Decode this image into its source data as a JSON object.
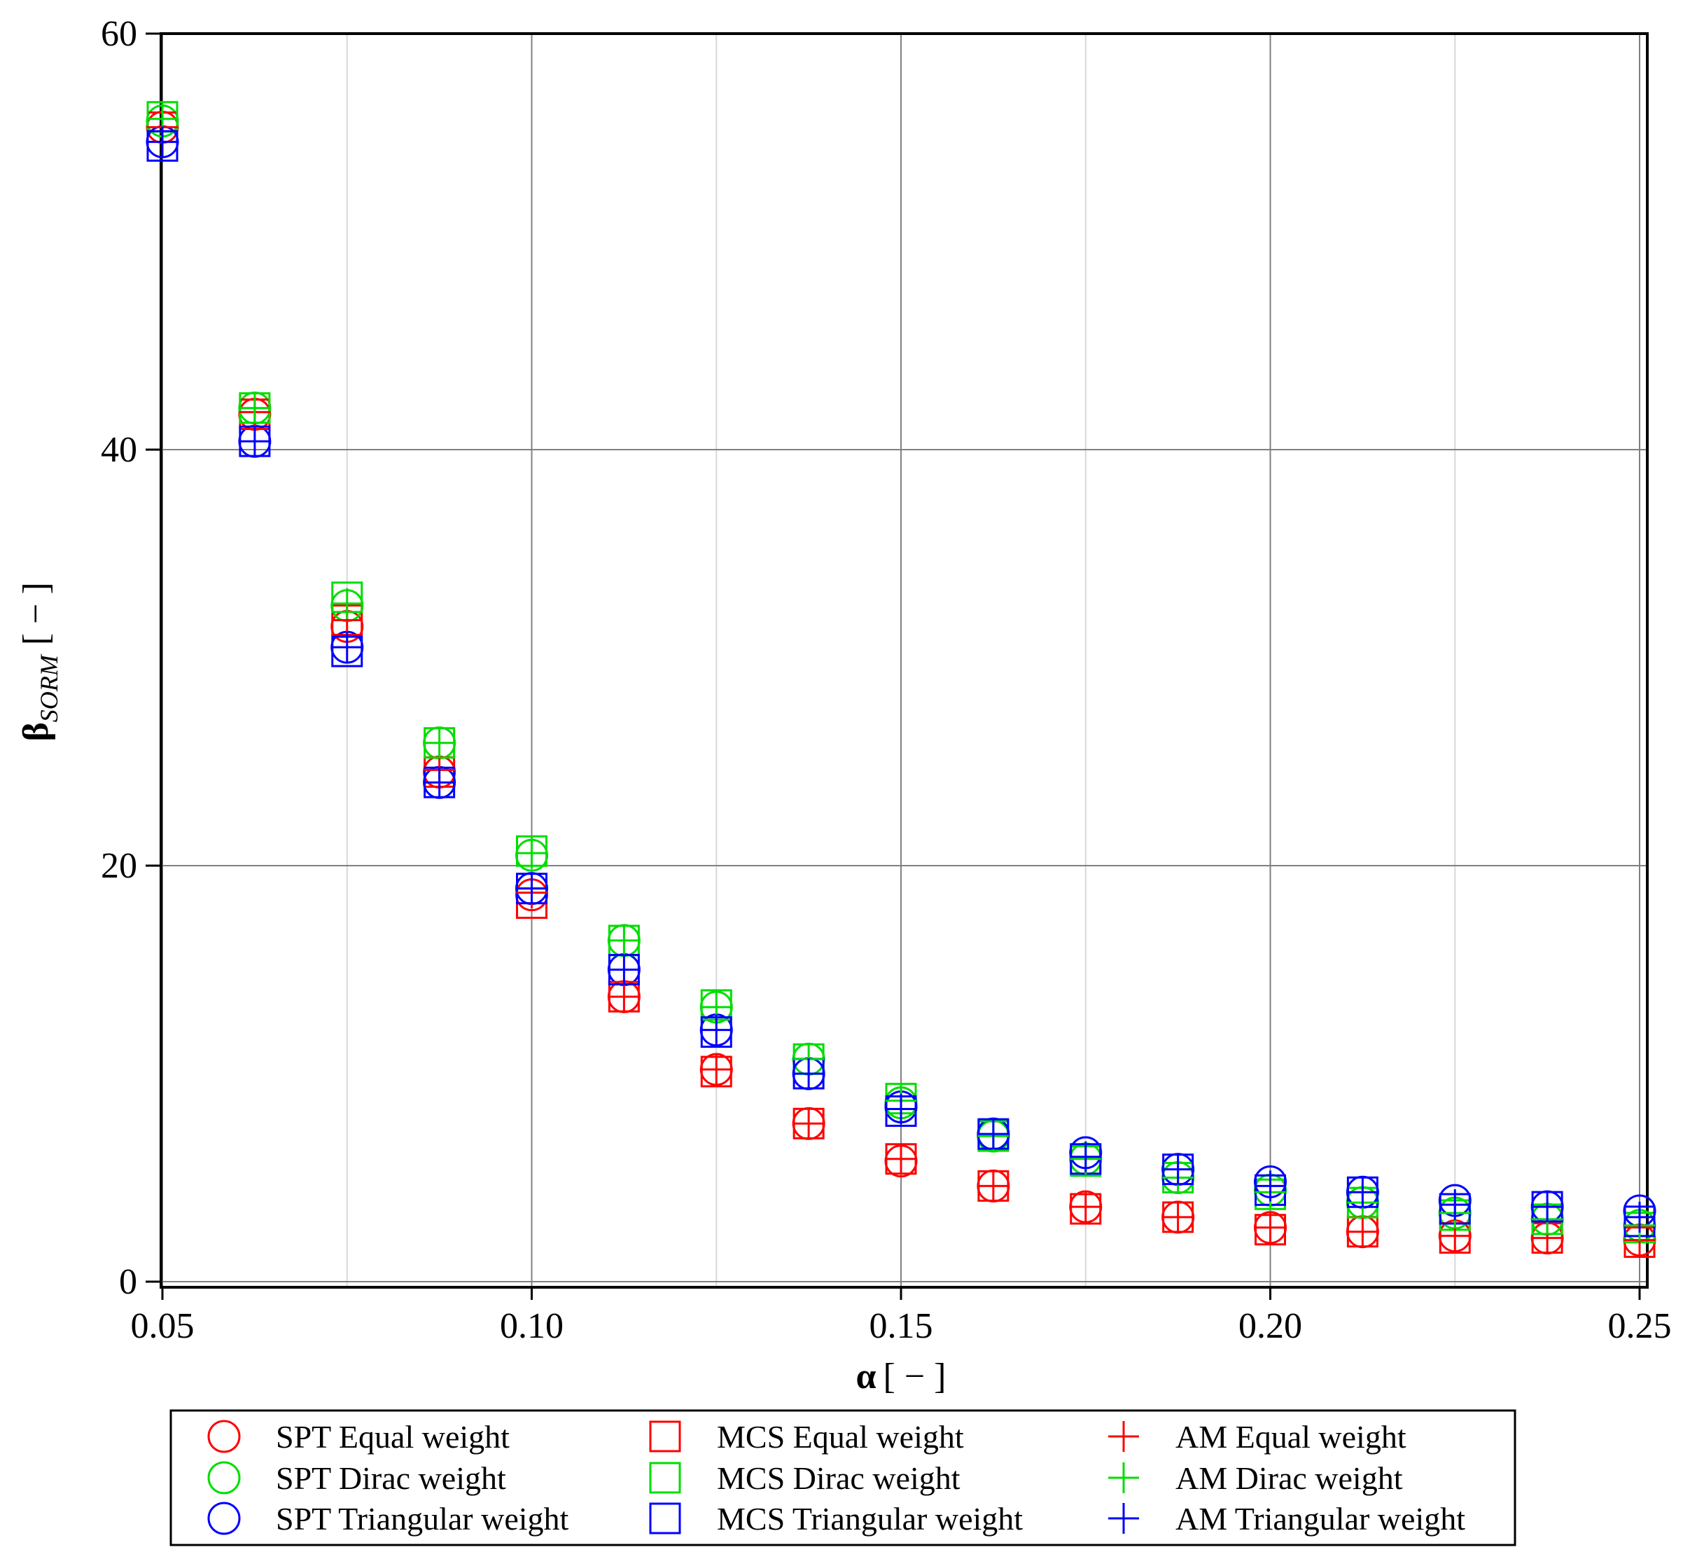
{
  "chart_data": {
    "type": "scatter",
    "title": "",
    "xlabel": {
      "symbol": "α",
      "unit": "[ − ]"
    },
    "ylabel": {
      "symbol": "β",
      "subscript": "SORM",
      "unit": "[ − ]"
    },
    "xlim": [
      0.05,
      0.25
    ],
    "ylim": [
      0,
      60
    ],
    "xticks": [
      0.05,
      0.1,
      0.15,
      0.2,
      0.25
    ],
    "xtick_labels": [
      "0.05",
      "0.10",
      "0.15",
      "0.20",
      "0.25"
    ],
    "yticks": [
      0,
      20,
      40,
      60
    ],
    "ytick_labels": [
      "0",
      "20",
      "40",
      "60"
    ],
    "grid": true,
    "legend_position": "bottom",
    "x": [
      0.05,
      0.0625,
      0.075,
      0.0875,
      0.1,
      0.1125,
      0.125,
      0.1375,
      0.15,
      0.1625,
      0.175,
      0.1875,
      0.2,
      0.2125,
      0.225,
      0.2375,
      0.25
    ],
    "series": [
      {
        "name": "SPT Equal weight",
        "marker": "circle",
        "color": "#ff0000",
        "values": [
          55.5,
          41.7,
          31.5,
          24.5,
          18.6,
          13.7,
          10.2,
          7.6,
          5.8,
          4.6,
          3.6,
          3.1,
          2.6,
          2.4,
          2.2,
          2.1,
          2.0
        ]
      },
      {
        "name": "SPT Dirac weight",
        "marker": "circle",
        "color": "#00dd00",
        "values": [
          55.8,
          42.0,
          32.5,
          25.9,
          20.5,
          16.4,
          13.2,
          10.7,
          8.6,
          7.0,
          5.9,
          5.0,
          4.4,
          3.8,
          3.3,
          3.0,
          2.7
        ]
      },
      {
        "name": "SPT Triangular weight",
        "marker": "circle",
        "color": "#0000ff",
        "values": [
          54.8,
          40.4,
          30.5,
          24.0,
          18.9,
          15.0,
          12.1,
          10.0,
          8.4,
          7.1,
          6.2,
          5.4,
          4.8,
          4.3,
          3.9,
          3.6,
          3.4
        ]
      },
      {
        "name": "MCS Equal weight",
        "marker": "square",
        "color": "#ff0000",
        "values": [
          55.5,
          41.7,
          31.8,
          24.5,
          18.2,
          13.7,
          10.1,
          7.6,
          5.9,
          4.6,
          3.5,
          3.1,
          2.5,
          2.4,
          2.1,
          2.1,
          1.9
        ]
      },
      {
        "name": "MCS Dirac weight",
        "marker": "square",
        "color": "#00dd00",
        "values": [
          56.0,
          42.0,
          32.9,
          25.9,
          20.7,
          16.4,
          13.3,
          10.7,
          8.8,
          7.0,
          5.8,
          5.0,
          4.2,
          3.8,
          3.2,
          3.0,
          2.6
        ]
      },
      {
        "name": "MCS Triangular weight",
        "marker": "square",
        "color": "#0000ff",
        "values": [
          54.6,
          40.4,
          30.3,
          24.0,
          18.9,
          15.0,
          12.0,
          10.0,
          8.2,
          7.1,
          5.9,
          5.4,
          4.4,
          4.3,
          3.5,
          3.6,
          2.9
        ]
      },
      {
        "name": "AM Equal weight",
        "marker": "plus",
        "color": "#ff0000",
        "values": [
          55.5,
          41.8,
          31.8,
          24.6,
          18.7,
          13.7,
          10.2,
          7.6,
          5.9,
          4.6,
          3.6,
          3.1,
          2.6,
          2.4,
          2.2,
          2.1,
          2.0
        ]
      },
      {
        "name": "AM Dirac weight",
        "marker": "plus",
        "color": "#00dd00",
        "values": [
          55.9,
          42.0,
          32.6,
          25.9,
          20.6,
          16.4,
          13.2,
          10.7,
          8.7,
          7.0,
          5.9,
          5.0,
          4.3,
          3.8,
          3.3,
          3.0,
          2.7
        ]
      },
      {
        "name": "AM Triangular weight",
        "marker": "plus",
        "color": "#0000ff",
        "values": [
          54.8,
          40.4,
          30.5,
          24.0,
          18.9,
          15.0,
          12.1,
          10.0,
          8.3,
          7.1,
          6.0,
          5.4,
          4.6,
          4.3,
          3.7,
          3.6,
          3.1
        ]
      }
    ]
  }
}
